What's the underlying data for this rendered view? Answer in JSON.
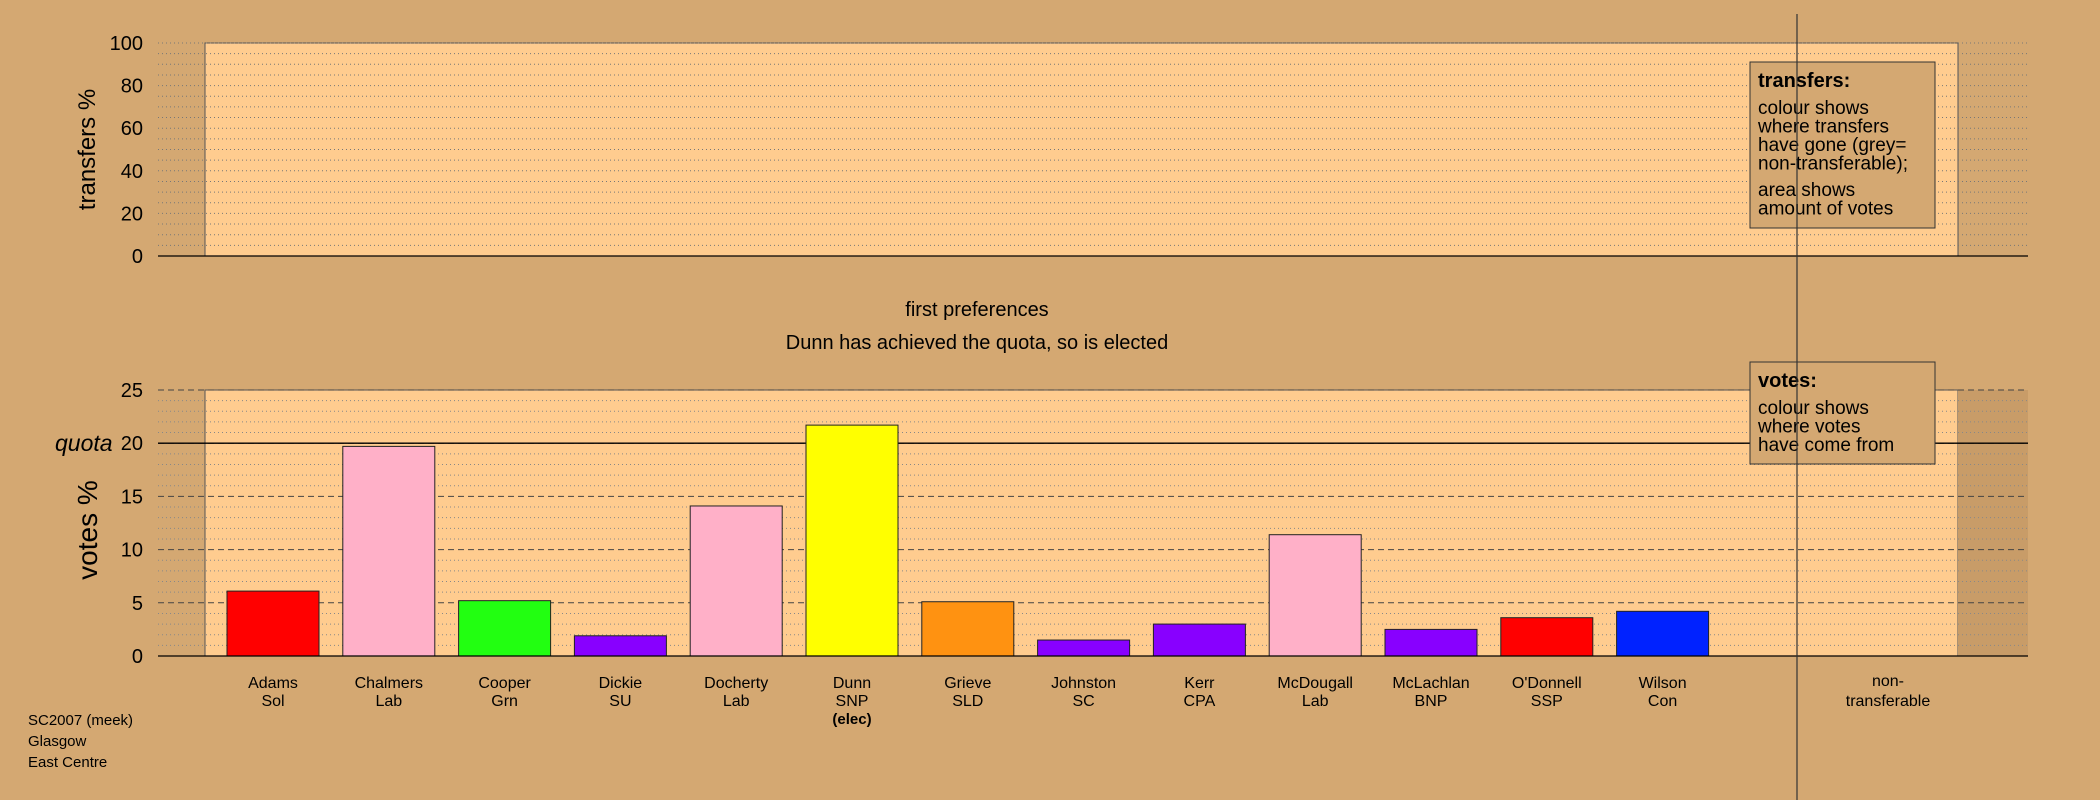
{
  "chart_data": [
    {
      "type": "bar",
      "panel": "transfers",
      "ylabel": "transfers %",
      "ylim": [
        0,
        100
      ],
      "yticks": [
        0,
        20,
        40,
        60,
        80,
        100
      ],
      "grid": true,
      "legend": {
        "title": "transfers:",
        "lines": [
          "colour shows",
          "where transfers",
          "have gone (grey=",
          "non-transferable);"
        ],
        "lines2": [
          "area shows",
          "amount of votes"
        ],
        "placement": "top-right"
      },
      "values": []
    },
    {
      "type": "bar",
      "panel": "votes",
      "title": "first preferences",
      "subtitle": "Dunn has achieved the quota, so is elected",
      "ylabel": "votes %",
      "ylim": [
        0,
        25
      ],
      "yticks": [
        0,
        5,
        10,
        15,
        20,
        25
      ],
      "quota": 20,
      "quota_label": "quota",
      "grid": true,
      "legend": {
        "title": "votes:",
        "lines": [
          "colour shows",
          "where votes",
          "have come from"
        ],
        "placement": "top-right"
      },
      "categories": [
        {
          "name": "Adams",
          "party": "Sol",
          "value": 6.1,
          "color": "#FF0000"
        },
        {
          "name": "Chalmers",
          "party": "Lab",
          "value": 19.7,
          "color": "#FFB0C8"
        },
        {
          "name": "Cooper",
          "party": "Grn",
          "value": 5.2,
          "color": "#22FF11"
        },
        {
          "name": "Dickie",
          "party": "SU",
          "value": 1.9,
          "color": "#8800FF"
        },
        {
          "name": "Docherty",
          "party": "Lab",
          "value": 14.1,
          "color": "#FFB0C8"
        },
        {
          "name": "Dunn",
          "party": "SNP",
          "value": 21.7,
          "color": "#FFFF00",
          "note": "(elec)"
        },
        {
          "name": "Grieve",
          "party": "SLD",
          "value": 5.1,
          "color": "#FF9211"
        },
        {
          "name": "Johnston",
          "party": "SC",
          "value": 1.5,
          "color": "#8800FF"
        },
        {
          "name": "Kerr",
          "party": "CPA",
          "value": 3.0,
          "color": "#8800FF"
        },
        {
          "name": "McDougall",
          "party": "Lab",
          "value": 11.4,
          "color": "#FFB0C8"
        },
        {
          "name": "McLachlan",
          "party": "BNP",
          "value": 2.5,
          "color": "#8800FF"
        },
        {
          "name": "O'Donnell",
          "party": "SSP",
          "value": 3.6,
          "color": "#FF0000"
        },
        {
          "name": "Wilson",
          "party": "Con",
          "value": 4.2,
          "color": "#0022FF"
        }
      ],
      "nontransferable": {
        "line1": "non-",
        "line2": "transferable",
        "value": 0
      }
    }
  ],
  "footer": [
    "SC2007 (meek)",
    "Glasgow",
    "East Centre"
  ],
  "colors": {
    "background": "#D4A872",
    "panel": "#FFCC8F"
  }
}
